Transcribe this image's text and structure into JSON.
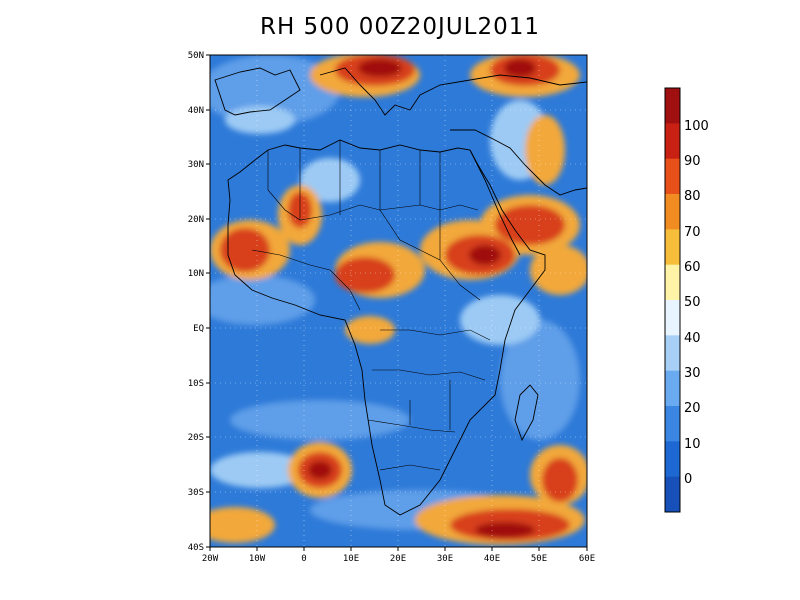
{
  "title": "RH 500 00Z20JUL2011",
  "lon_ticks": [
    "20W",
    "10W",
    "0",
    "10E",
    "20E",
    "30E",
    "40E",
    "50E",
    "60E"
  ],
  "lat_ticks": [
    "50N",
    "40N",
    "30N",
    "20N",
    "10N",
    "EQ",
    "10S",
    "20S",
    "30S",
    "40S"
  ],
  "colorbar": {
    "labels": [
      "100",
      "90",
      "80",
      "70",
      "60",
      "50",
      "40",
      "30",
      "20",
      "10",
      "0"
    ],
    "colors": [
      "#a01010",
      "#c82012",
      "#e8501a",
      "#f08c22",
      "#f6be3a",
      "#fff3a8",
      "#e8f4ff",
      "#a8d0f6",
      "#6aaaf0",
      "#3a86e2",
      "#1e68d4",
      "#1650b8"
    ]
  },
  "field_colors": {
    "dry": "#2e7ad8",
    "moderate": "#5e9ee8",
    "mid": "#9ccaf4",
    "humid": "#f2a83a",
    "very_humid": "#d8401c",
    "saturated": "#a01010"
  }
}
